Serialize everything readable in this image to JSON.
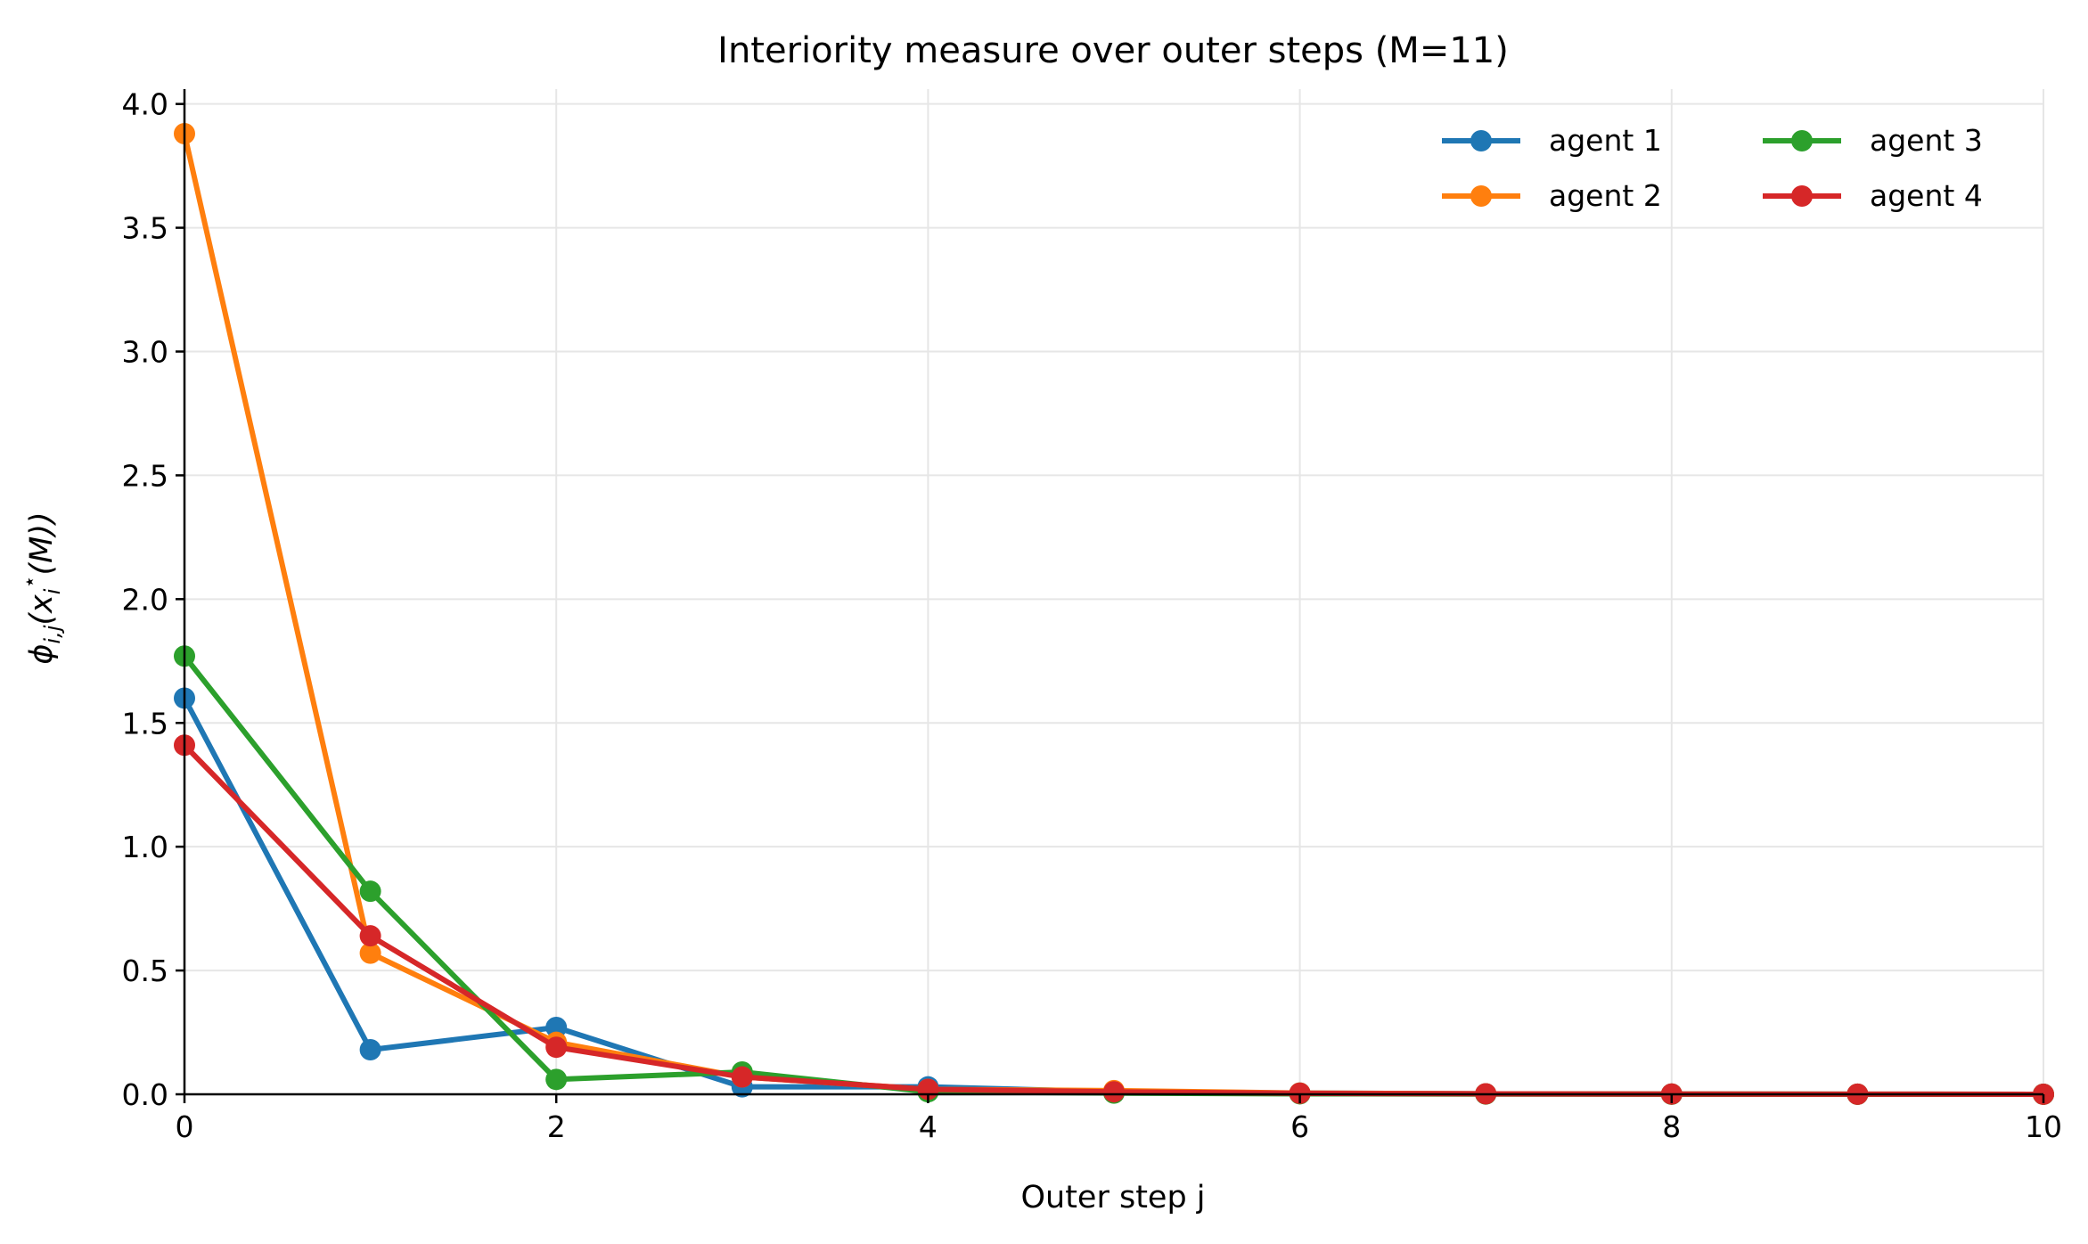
{
  "chart_data": {
    "type": "line",
    "title": "Interiority measure over outer steps (M=11)",
    "xlabel": "Outer step j",
    "ylabel": "ϕ_{i,j}(x_i^⋆(M))",
    "xlim": [
      0,
      10
    ],
    "ylim": [
      0,
      4.06
    ],
    "xticks": [
      0,
      2,
      4,
      6,
      8,
      10
    ],
    "xtick_labels": [
      "0",
      "2",
      "4",
      "6",
      "8",
      "10"
    ],
    "yticks": [
      0,
      0.5,
      1.0,
      1.5,
      2.0,
      2.5,
      3.0,
      3.5,
      4.0
    ],
    "ytick_labels": [
      "0.0",
      "0.5",
      "1.0",
      "1.5",
      "2.0",
      "2.5",
      "3.0",
      "3.5",
      "4.0"
    ],
    "grid": true,
    "legend_position": "top-right",
    "legend_columns": 2,
    "x": [
      0,
      1,
      2,
      3,
      4,
      5,
      6,
      7,
      8,
      9,
      10
    ],
    "series": [
      {
        "name": "agent 1",
        "color": "#1f77b4",
        "values": [
          1.6,
          0.18,
          0.27,
          0.03,
          0.03,
          0.01,
          0.005,
          0.002,
          0.001,
          0.0005,
          0.0002
        ]
      },
      {
        "name": "agent 2",
        "color": "#ff7f0e",
        "values": [
          3.88,
          0.57,
          0.21,
          0.07,
          0.02,
          0.015,
          0.005,
          0.002,
          0.001,
          0.0005,
          0.0002
        ]
      },
      {
        "name": "agent 3",
        "color": "#2ca02c",
        "values": [
          1.77,
          0.82,
          0.06,
          0.09,
          0.01,
          0.005,
          0.002,
          0.001,
          0.0005,
          0.0002,
          0.0001
        ]
      },
      {
        "name": "agent 4",
        "color": "#d62728",
        "values": [
          1.41,
          0.64,
          0.19,
          0.07,
          0.02,
          0.01,
          0.004,
          0.002,
          0.001,
          0.0005,
          0.0002
        ]
      }
    ]
  }
}
